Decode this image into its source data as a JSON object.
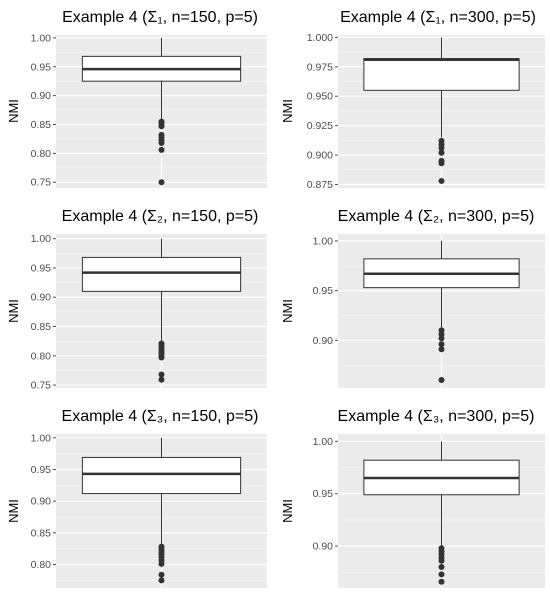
{
  "chart_data": [
    {
      "type": "boxplot",
      "title": "Example 4 (Σ₁, n=150, p=5)",
      "ylabel": "NMI",
      "xlabel": "",
      "ylim": [
        0.74,
        1.005
      ],
      "y_ticks": [
        "0.75",
        "0.80",
        "0.85",
        "0.90",
        "0.95",
        "1.00"
      ],
      "box": {
        "whisker_low": 0.86,
        "q1": 0.925,
        "median": 0.946,
        "q3": 0.968,
        "whisker_high": 1.0
      },
      "outliers": [
        0.855,
        0.851,
        0.847,
        0.832,
        0.828,
        0.823,
        0.818,
        0.806,
        0.75
      ]
    },
    {
      "type": "boxplot",
      "title": "Example 4 (Σ₁, n=300, p=5)",
      "ylabel": "NMI",
      "xlabel": "",
      "ylim": [
        0.872,
        1.002
      ],
      "y_ticks": [
        "0.875",
        "0.900",
        "0.925",
        "0.950",
        "0.975",
        "1.000"
      ],
      "box": {
        "whisker_low": 0.915,
        "q1": 0.955,
        "median": 0.981,
        "q3": 0.982,
        "whisker_high": 1.0
      },
      "outliers": [
        0.912,
        0.909,
        0.906,
        0.902,
        0.895,
        0.893,
        0.878
      ]
    },
    {
      "type": "boxplot",
      "title": "Example 4 (Σ₂, n=150, p=5)",
      "ylabel": "NMI",
      "xlabel": "",
      "ylim": [
        0.745,
        1.008
      ],
      "y_ticks": [
        "0.75",
        "0.80",
        "0.85",
        "0.90",
        "0.95",
        "1.00"
      ],
      "box": {
        "whisker_low": 0.825,
        "q1": 0.91,
        "median": 0.942,
        "q3": 0.968,
        "whisker_high": 1.0
      },
      "outliers": [
        0.821,
        0.817,
        0.813,
        0.809,
        0.805,
        0.801,
        0.797,
        0.768,
        0.759
      ]
    },
    {
      "type": "boxplot",
      "title": "Example 4 (Σ₂, n=300, p=5)",
      "ylabel": "NMI",
      "xlabel": "",
      "ylim": [
        0.852,
        1.007
      ],
      "y_ticks": [
        "0.90",
        "0.95",
        "1.00"
      ],
      "box": {
        "whisker_low": 0.912,
        "q1": 0.953,
        "median": 0.967,
        "q3": 0.982,
        "whisker_high": 1.0
      },
      "outliers": [
        0.91,
        0.906,
        0.902,
        0.896,
        0.891,
        0.86
      ]
    },
    {
      "type": "boxplot",
      "title": "Example 4 (Σ₃, n=150, p=5)",
      "ylabel": "NMI",
      "xlabel": "",
      "ylim": [
        0.763,
        1.006
      ],
      "y_ticks": [
        "0.80",
        "0.85",
        "0.90",
        "0.95",
        "1.00"
      ],
      "box": {
        "whisker_low": 0.83,
        "q1": 0.912,
        "median": 0.943,
        "q3": 0.969,
        "whisker_high": 1.0
      },
      "outliers": [
        0.828,
        0.824,
        0.82,
        0.816,
        0.812,
        0.807,
        0.801,
        0.784,
        0.775
      ]
    },
    {
      "type": "boxplot",
      "title": "Example 4 (Σ₃, n=300, p=5)",
      "ylabel": "NMI",
      "xlabel": "",
      "ylim": [
        0.86,
        1.007
      ],
      "y_ticks": [
        "0.90",
        "0.95",
        "1.00"
      ],
      "box": {
        "whisker_low": 0.9,
        "q1": 0.949,
        "median": 0.965,
        "q3": 0.982,
        "whisker_high": 1.0
      },
      "outliers": [
        0.898,
        0.895,
        0.892,
        0.889,
        0.886,
        0.88,
        0.873,
        0.866
      ]
    }
  ]
}
